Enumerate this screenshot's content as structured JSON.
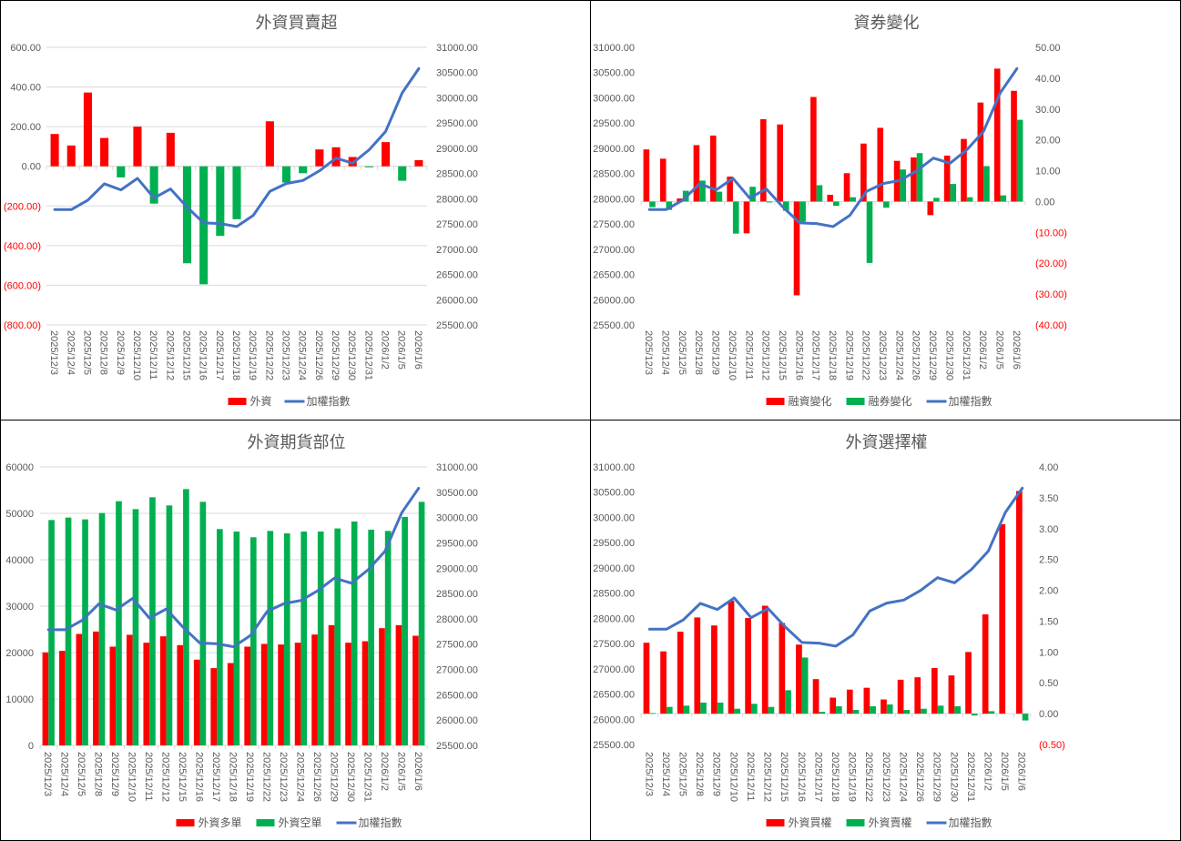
{
  "dates": [
    "2025/12/3",
    "2025/12/4",
    "2025/12/5",
    "2025/12/8",
    "2025/12/9",
    "2025/12/10",
    "2025/12/11",
    "2025/12/12",
    "2025/12/15",
    "2025/12/16",
    "2025/12/17",
    "2025/12/18",
    "2025/12/19",
    "2025/12/22",
    "2025/12/23",
    "2025/12/24",
    "2025/12/26",
    "2025/12/29",
    "2025/12/30",
    "2025/12/31",
    "2026/1/2",
    "2026/1/5",
    "2026/1/6"
  ],
  "colors": {
    "red": "#ff0000",
    "green": "#00b050",
    "line": "#4472c4"
  },
  "chart_data": [
    {
      "type": "bar+line",
      "title": "外資買賣超",
      "grid": true,
      "bar_axis": "left",
      "left_range": [
        -800,
        600
      ],
      "left_ticks": [
        "600.00",
        "400.00",
        "200.00",
        "0.00",
        "(200.00)",
        "(400.00)",
        "(600.00)",
        "(800.00)"
      ],
      "left_tick_values": [
        600,
        400,
        200,
        0,
        -200,
        -400,
        -600,
        -800
      ],
      "right_range": [
        25500,
        31000
      ],
      "right_ticks": [
        "31000.00",
        "30500.00",
        "30000.00",
        "29500.00",
        "29000.00",
        "28500.00",
        "28000.00",
        "27500.00",
        "27000.00",
        "26500.00",
        "26000.00",
        "25500.00"
      ],
      "right_tick_values": [
        31000,
        30500,
        30000,
        29500,
        29000,
        28500,
        28000,
        27500,
        27000,
        26500,
        26000,
        25500
      ],
      "series": [
        {
          "name": "外資",
          "kind": "bar",
          "color_mode": "sign",
          "values": [
            163,
            105,
            372,
            143,
            -56,
            200,
            -188,
            169,
            -489,
            -595,
            -351,
            -267,
            0,
            227,
            -82,
            -35,
            85,
            96,
            47,
            -5,
            122,
            -73,
            31
          ]
        },
        {
          "name": "加權指數",
          "kind": "line",
          "axis": "right",
          "values": [
            27785,
            27785,
            27971,
            28296,
            28176,
            28404,
            28014,
            28194,
            27833,
            27521,
            27509,
            27449,
            27671,
            28146,
            28302,
            28362,
            28554,
            28806,
            28704,
            28969,
            29335,
            30098,
            30579
          ]
        }
      ],
      "legend": "bottom"
    },
    {
      "type": "bar+line",
      "title": "資券變化",
      "grid": false,
      "bar_axis": "right",
      "left_range": [
        25500,
        31000
      ],
      "left_ticks": [
        "31000.00",
        "30500.00",
        "30000.00",
        "29500.00",
        "29000.00",
        "28500.00",
        "28000.00",
        "27500.00",
        "27000.00",
        "26500.00",
        "26000.00",
        "25500.00"
      ],
      "left_tick_values": [
        31000,
        30500,
        30000,
        29500,
        29000,
        28500,
        28000,
        27500,
        27000,
        26500,
        26000,
        25500
      ],
      "right_range": [
        -40,
        50
      ],
      "right_ticks": [
        "50.00",
        "40.00",
        "30.00",
        "20.00",
        "10.00",
        "0.00",
        "(10.00)",
        "(20.00)",
        "(30.00)",
        "(40.00)"
      ],
      "right_tick_values": [
        50,
        40,
        30,
        20,
        10,
        0,
        -10,
        -20,
        -30,
        -40
      ],
      "series": [
        {
          "name": "融資變化",
          "kind": "bar",
          "color": "#ff0000",
          "values": [
            16.9,
            13.9,
            1.0,
            18.3,
            21.4,
            8.1,
            -10.3,
            26.7,
            25.0,
            -30.4,
            33.9,
            2.2,
            9.2,
            18.8,
            23.9,
            13.2,
            14.3,
            -4.4,
            14.9,
            20.3,
            32.1,
            43.1,
            35.9
          ]
        },
        {
          "name": "融券變化",
          "kind": "bar",
          "color": "#00b050",
          "values": [
            -1.8,
            -2.7,
            3.5,
            6.8,
            3.2,
            -10.4,
            4.8,
            -0.3,
            -3.0,
            -6.5,
            5.3,
            -1.4,
            1.4,
            -19.9,
            -2.0,
            10.4,
            15.7,
            1.2,
            5.7,
            1.4,
            11.5,
            2.0,
            26.5
          ]
        },
        {
          "name": "加權指數",
          "kind": "line",
          "axis": "left",
          "values": [
            27785,
            27785,
            27971,
            28296,
            28176,
            28404,
            28014,
            28194,
            27833,
            27521,
            27509,
            27449,
            27671,
            28146,
            28302,
            28362,
            28554,
            28806,
            28704,
            28969,
            29335,
            30098,
            30579
          ]
        }
      ],
      "legend": "bottom"
    },
    {
      "type": "bar+line",
      "title": "外資期貨部位",
      "grid": true,
      "bar_axis": "left",
      "left_range": [
        0,
        60000
      ],
      "left_ticks": [
        "60000",
        "50000",
        "40000",
        "30000",
        "20000",
        "10000",
        "0"
      ],
      "left_tick_values": [
        60000,
        50000,
        40000,
        30000,
        20000,
        10000,
        0
      ],
      "right_range": [
        25500,
        31000
      ],
      "right_ticks": [
        "31000.00",
        "30500.00",
        "30000.00",
        "29500.00",
        "29000.00",
        "28500.00",
        "28000.00",
        "27500.00",
        "27000.00",
        "26500.00",
        "26000.00",
        "25500.00"
      ],
      "right_tick_values": [
        31000,
        30500,
        30000,
        29500,
        29000,
        28500,
        28000,
        27500,
        27000,
        26500,
        26000,
        25500
      ],
      "series": [
        {
          "name": "外資多單",
          "kind": "bar",
          "color": "#ff0000",
          "values": [
            20040,
            20370,
            24020,
            24540,
            21280,
            23830,
            22130,
            23500,
            21610,
            18470,
            16650,
            17750,
            21280,
            21870,
            21740,
            22130,
            23890,
            25910,
            22130,
            22450,
            25260,
            25910,
            23630
          ]
        },
        {
          "name": "外資空單",
          "kind": "bar",
          "color": "#00b050",
          "values": [
            48560,
            49090,
            48700,
            50070,
            52610,
            50910,
            53460,
            51700,
            55220,
            52480,
            46610,
            46080,
            44840,
            46210,
            45690,
            46080,
            46080,
            46740,
            48240,
            46480,
            46210,
            49220,
            52480
          ]
        },
        {
          "name": "加權指數",
          "kind": "line",
          "axis": "right",
          "values": [
            27785,
            27785,
            27971,
            28296,
            28176,
            28404,
            28014,
            28194,
            27833,
            27521,
            27509,
            27449,
            27671,
            28146,
            28302,
            28362,
            28554,
            28806,
            28704,
            28969,
            29335,
            30098,
            30579
          ]
        }
      ],
      "legend": "bottom"
    },
    {
      "type": "bar+line",
      "title": "外資選擇權",
      "grid": false,
      "bar_axis": "right",
      "left_range": [
        25500,
        31000
      ],
      "left_ticks": [
        "31000.00",
        "30500.00",
        "30000.00",
        "29500.00",
        "29000.00",
        "28500.00",
        "28000.00",
        "27500.00",
        "27000.00",
        "26500.00",
        "26000.00",
        "25500.00"
      ],
      "left_tick_values": [
        31000,
        30500,
        30000,
        29500,
        29000,
        28500,
        28000,
        27500,
        27000,
        26500,
        26000,
        25500
      ],
      "right_range": [
        -0.5,
        4.0
      ],
      "right_ticks": [
        "4.00",
        "3.50",
        "3.00",
        "2.50",
        "2.00",
        "1.50",
        "1.00",
        "0.50",
        "0.00",
        "(0.50)"
      ],
      "right_tick_values": [
        4,
        3.5,
        3,
        2.5,
        2,
        1.5,
        1,
        0.5,
        0,
        -0.5
      ],
      "series": [
        {
          "name": "外資買權",
          "kind": "bar",
          "color": "#ff0000",
          "values": [
            1.15,
            1.01,
            1.33,
            1.56,
            1.43,
            1.83,
            1.55,
            1.75,
            1.47,
            1.12,
            0.56,
            0.26,
            0.39,
            0.42,
            0.23,
            0.55,
            0.59,
            0.74,
            0.62,
            1.0,
            1.61,
            3.07,
            3.61
          ]
        },
        {
          "name": "外資賣權",
          "kind": "bar",
          "color": "#00b050",
          "values": [
            0.01,
            0.11,
            0.13,
            0.18,
            0.18,
            0.08,
            0.16,
            0.11,
            0.38,
            0.91,
            0.03,
            0.12,
            0.06,
            0.12,
            0.15,
            0.06,
            0.08,
            0.13,
            0.12,
            -0.03,
            0.04,
            0.0,
            -0.11
          ]
        },
        {
          "name": "加權指數",
          "kind": "line",
          "axis": "left",
          "values": [
            27785,
            27785,
            27971,
            28296,
            28176,
            28404,
            28014,
            28194,
            27833,
            27521,
            27509,
            27449,
            27671,
            28146,
            28302,
            28362,
            28554,
            28806,
            28704,
            28969,
            29335,
            30098,
            30579
          ]
        }
      ],
      "legend": "bottom"
    }
  ]
}
